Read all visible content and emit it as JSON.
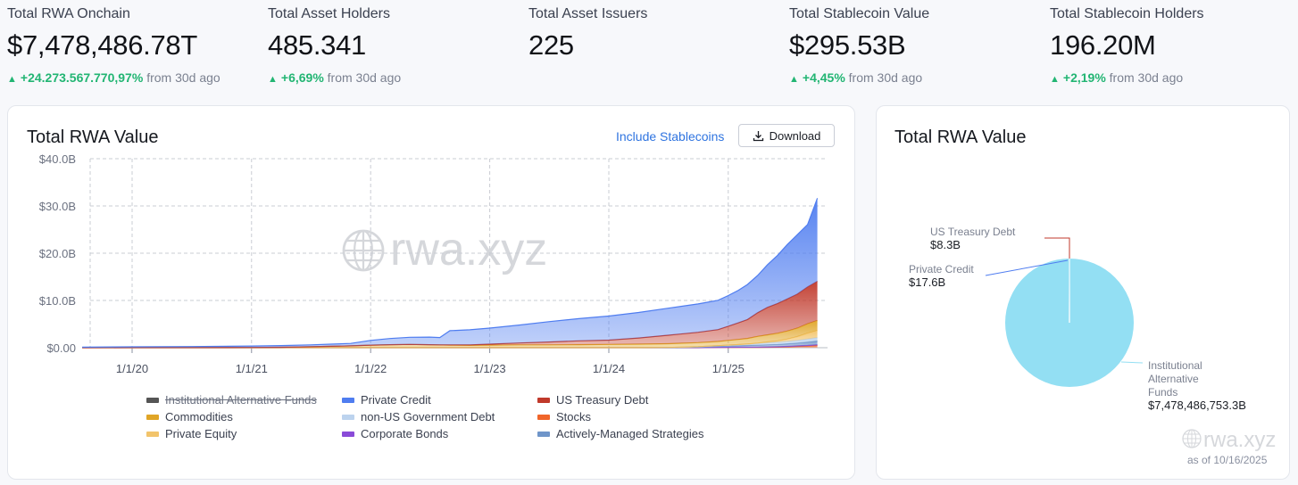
{
  "stats": [
    {
      "label": "Total RWA Onchain",
      "value": "$7,478,486.78T",
      "change": "+24.273.567.770,97%",
      "suffix": "from 30d ago"
    },
    {
      "label": "Total Asset Holders",
      "value": "485.341",
      "change": "+6,69%",
      "suffix": "from 30d ago"
    },
    {
      "label": "Total Asset Issuers",
      "value": "225",
      "change": "",
      "suffix": ""
    },
    {
      "label": "Total Stablecoin Value",
      "value": "$295.53B",
      "change": "+4,45%",
      "suffix": "from 30d ago"
    },
    {
      "label": "Total Stablecoin Holders",
      "value": "196.20M",
      "change": "+2,19%",
      "suffix": "from 30d ago"
    }
  ],
  "main_card": {
    "title": "Total RWA Value",
    "toggle_label": "Include Stablecoins",
    "download_label": "Download",
    "watermark": "rwa.xyz"
  },
  "side_card": {
    "title": "Total RWA Value",
    "watermark": "rwa.xyz",
    "as_of": "as of 10/16/2025"
  },
  "icons": {
    "download": "download-icon",
    "globe": "globe-icon",
    "up": "triangle-up-icon"
  },
  "colors": {
    "positive": "#22b573",
    "link": "#2f74e0"
  },
  "chart_data": [
    {
      "type": "area",
      "stacked": true,
      "title": "Total RWA Value",
      "x_ticks": [
        "1/1/20",
        "1/1/21",
        "1/1/22",
        "1/1/23",
        "1/1/24",
        "1/1/25"
      ],
      "x_range": [
        "2019-08",
        "2025-10"
      ],
      "y_ticks": [
        "$0.00",
        "$10.0B",
        "$20.0B",
        "$30.0B",
        "$40.0B"
      ],
      "ylim": [
        0,
        40
      ],
      "y_unit": "B USD",
      "grid": true,
      "legend_position": "bottom",
      "legend": [
        {
          "name": "Institutional Alternative Funds",
          "color": "#555555",
          "hidden": true
        },
        {
          "name": "Private Credit",
          "color": "#4f7df0"
        },
        {
          "name": "US Treasury Debt",
          "color": "#c0392b"
        },
        {
          "name": "Commodities",
          "color": "#e0a526"
        },
        {
          "name": "non-US Government Debt",
          "color": "#bcd3ee"
        },
        {
          "name": "Stocks",
          "color": "#f0652a"
        },
        {
          "name": "Private Equity",
          "color": "#f2c46b"
        },
        {
          "name": "Corporate Bonds",
          "color": "#8a4bd8"
        },
        {
          "name": "Actively-Managed Strategies",
          "color": "#6f95c9"
        }
      ],
      "x": [
        "2019-08",
        "2020-01",
        "2020-07",
        "2021-01",
        "2021-04",
        "2021-07",
        "2021-09",
        "2021-11",
        "2022-01",
        "2022-03",
        "2022-05",
        "2022-07",
        "2022-08",
        "2022-09",
        "2022-11",
        "2023-01",
        "2023-04",
        "2023-07",
        "2023-10",
        "2024-01",
        "2024-04",
        "2024-07",
        "2024-10",
        "2024-12",
        "2025-01",
        "2025-02",
        "2025-03",
        "2025-04",
        "2025-05",
        "2025-06",
        "2025-07",
        "2025-08",
        "2025-09",
        "2025-10"
      ],
      "series": [
        {
          "name": "Stocks",
          "values": [
            0,
            0,
            0,
            0,
            0,
            0,
            0,
            0,
            0,
            0,
            0,
            0,
            0,
            0,
            0,
            0,
            0,
            0,
            0,
            0,
            0,
            0,
            0,
            0.05,
            0.05,
            0.06,
            0.07,
            0.08,
            0.1,
            0.12,
            0.18,
            0.28,
            0.36,
            0.5
          ]
        },
        {
          "name": "Corporate Bonds",
          "values": [
            0,
            0,
            0,
            0,
            0,
            0,
            0,
            0,
            0,
            0,
            0,
            0,
            0,
            0,
            0,
            0,
            0,
            0,
            0,
            0,
            0,
            0,
            0.02,
            0.03,
            0.04,
            0.05,
            0.05,
            0.06,
            0.07,
            0.08,
            0.1,
            0.12,
            0.14,
            0.15
          ]
        },
        {
          "name": "Actively-Managed Strategies",
          "values": [
            0,
            0,
            0,
            0,
            0,
            0,
            0,
            0,
            0,
            0,
            0,
            0,
            0,
            0,
            0,
            0,
            0,
            0,
            0,
            0,
            0,
            0,
            0.1,
            0.2,
            0.25,
            0.3,
            0.35,
            0.4,
            0.45,
            0.5,
            0.55,
            0.6,
            0.7,
            0.8
          ]
        },
        {
          "name": "non-US Government Debt",
          "values": [
            0,
            0,
            0,
            0,
            0,
            0,
            0,
            0,
            0,
            0,
            0,
            0,
            0,
            0,
            0,
            0,
            0,
            0,
            0,
            0,
            0,
            0.05,
            0.1,
            0.15,
            0.2,
            0.25,
            0.3,
            0.35,
            0.4,
            0.45,
            0.5,
            0.55,
            0.65,
            0.7
          ]
        },
        {
          "name": "Private Equity",
          "values": [
            0,
            0,
            0,
            0,
            0,
            0,
            0,
            0,
            0,
            0,
            0,
            0,
            0,
            0,
            0,
            0,
            0,
            0,
            0,
            0,
            0,
            0,
            0,
            0,
            0,
            0,
            0,
            0.1,
            0.2,
            0.3,
            0.5,
            0.8,
            1.2,
            1.5
          ]
        },
        {
          "name": "Commodities",
          "values": [
            0.02,
            0.03,
            0.04,
            0.05,
            0.1,
            0.2,
            0.3,
            0.4,
            0.55,
            0.65,
            0.7,
            0.65,
            0.6,
            0.55,
            0.5,
            0.55,
            0.6,
            0.6,
            0.65,
            0.7,
            0.75,
            0.8,
            0.85,
            0.9,
            1.0,
            1.1,
            1.2,
            1.4,
            1.5,
            1.6,
            1.7,
            1.8,
            2.0,
            2.1
          ]
        },
        {
          "name": "US Treasury Debt",
          "values": [
            0,
            0,
            0,
            0,
            0,
            0,
            0,
            0,
            0,
            0,
            0,
            0,
            0,
            0.05,
            0.1,
            0.2,
            0.4,
            0.6,
            0.8,
            0.9,
            1.3,
            1.8,
            2.2,
            2.5,
            3.0,
            3.5,
            4.0,
            5.0,
            5.8,
            6.3,
            6.8,
            7.2,
            7.8,
            8.3
          ]
        },
        {
          "name": "Private Credit",
          "values": [
            0.1,
            0.15,
            0.2,
            0.3,
            0.35,
            0.4,
            0.45,
            0.5,
            1.0,
            1.3,
            1.5,
            1.6,
            1.55,
            3.0,
            3.2,
            3.4,
            3.8,
            4.3,
            4.7,
            5.1,
            5.4,
            5.7,
            6.0,
            6.2,
            6.5,
            6.9,
            7.4,
            7.9,
            9.0,
            10.2,
            11.5,
            12.6,
            13.2,
            17.6
          ]
        }
      ]
    },
    {
      "type": "pie",
      "title": "Total RWA Value",
      "slices": [
        {
          "label": "US Treasury Debt",
          "value_label": "$8.3B",
          "value": 8.3
        },
        {
          "label": "Private Credit",
          "value_label": "$17.6B",
          "value": 17.6
        },
        {
          "label": "Institutional Alternative Funds",
          "value_label": "$7,478,486,753.3B",
          "value": 7478486753.3,
          "color": "#93dff3"
        }
      ]
    }
  ]
}
